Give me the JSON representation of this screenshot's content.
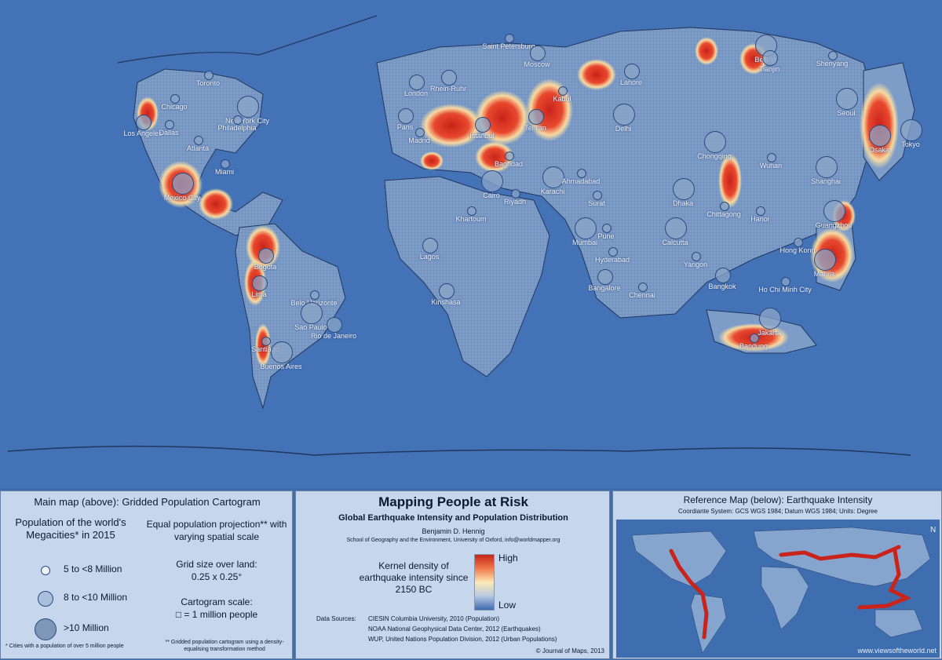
{
  "map": {
    "colors": {
      "ocean": "#4472b6",
      "land": "#7d9cc8",
      "hazard_high": "#d8261c",
      "hazard_mid": "#fbe6a8"
    },
    "cities": [
      {
        "name": "Toronto",
        "size": "small"
      },
      {
        "name": "Chicago",
        "size": "small"
      },
      {
        "name": "New York City",
        "size": "large"
      },
      {
        "name": "Philadelphia",
        "size": "small"
      },
      {
        "name": "Los Angeles",
        "size": "medium"
      },
      {
        "name": "Dallas",
        "size": "small"
      },
      {
        "name": "Atlanta",
        "size": "small"
      },
      {
        "name": "Miami",
        "size": "small"
      },
      {
        "name": "Mexico City",
        "size": "large"
      },
      {
        "name": "Bogota",
        "size": "medium"
      },
      {
        "name": "Lima",
        "size": "medium"
      },
      {
        "name": "Belo Horizonte",
        "size": "small"
      },
      {
        "name": "Rio de Janeiro",
        "size": "medium"
      },
      {
        "name": "Sao Paulo",
        "size": "large"
      },
      {
        "name": "Santiago",
        "size": "small"
      },
      {
        "name": "Buenos Aires",
        "size": "large"
      },
      {
        "name": "Saint Petersburg",
        "size": "small"
      },
      {
        "name": "Moscow",
        "size": "medium"
      },
      {
        "name": "Rhein-Ruhr",
        "size": "medium"
      },
      {
        "name": "London",
        "size": "medium"
      },
      {
        "name": "Paris",
        "size": "medium"
      },
      {
        "name": "Madrid",
        "size": "small"
      },
      {
        "name": "Istanbul",
        "size": "medium"
      },
      {
        "name": "Tehran",
        "size": "medium"
      },
      {
        "name": "Kabul",
        "size": "small"
      },
      {
        "name": "Baghdad",
        "size": "small"
      },
      {
        "name": "Cairo",
        "size": "large"
      },
      {
        "name": "Riyadh",
        "size": "small"
      },
      {
        "name": "Khartoum",
        "size": "small"
      },
      {
        "name": "Lagos",
        "size": "medium"
      },
      {
        "name": "Kinshasa",
        "size": "medium"
      },
      {
        "name": "Lahore",
        "size": "medium"
      },
      {
        "name": "Delhi",
        "size": "large"
      },
      {
        "name": "Karachi",
        "size": "large"
      },
      {
        "name": "Ahmadabad",
        "size": "small"
      },
      {
        "name": "Surat",
        "size": "small"
      },
      {
        "name": "Mumbai",
        "size": "large"
      },
      {
        "name": "Pune",
        "size": "small"
      },
      {
        "name": "Hyderabad",
        "size": "small"
      },
      {
        "name": "Bangalore",
        "size": "medium"
      },
      {
        "name": "Chennai",
        "size": "small"
      },
      {
        "name": "Calcutta",
        "size": "large"
      },
      {
        "name": "Dhaka",
        "size": "large"
      },
      {
        "name": "Chittagong",
        "size": "small"
      },
      {
        "name": "Yangon",
        "size": "small"
      },
      {
        "name": "Bangkok",
        "size": "medium"
      },
      {
        "name": "Hanoi",
        "size": "small"
      },
      {
        "name": "Ho Chi Minh City",
        "size": "small"
      },
      {
        "name": "Beijing",
        "size": "large"
      },
      {
        "name": "Tianjin",
        "size": "medium"
      },
      {
        "name": "Shenyang",
        "size": "small"
      },
      {
        "name": "Chongqing",
        "size": "large"
      },
      {
        "name": "Wuhan",
        "size": "small"
      },
      {
        "name": "Shanghai",
        "size": "large"
      },
      {
        "name": "Guangzhou",
        "size": "large"
      },
      {
        "name": "Hong Kong",
        "size": "small"
      },
      {
        "name": "Manila",
        "size": "large"
      },
      {
        "name": "Jakarta",
        "size": "large"
      },
      {
        "name": "Bandung",
        "size": "small"
      },
      {
        "name": "Seoul",
        "size": "large"
      },
      {
        "name": "Osaka",
        "size": "large"
      },
      {
        "name": "Tokyo",
        "size": "large"
      }
    ]
  },
  "left_panel": {
    "title": "Main map (above): Gridded Population Cartogram",
    "pop_heading": "Population of the world's Megacities* in 2015",
    "legend": [
      {
        "label": "5 to <8 Million",
        "size": "small"
      },
      {
        "label": "8 to <10 Million",
        "size": "medium"
      },
      {
        "label": ">10 Million",
        "size": "large"
      }
    ],
    "projection": "Equal population projection** with varying spatial scale",
    "grid_title": "Grid size over land:",
    "grid_value": "0.25 x 0.25°",
    "scale_title": "Cartogram scale:",
    "scale_value": "□ = 1 million people",
    "footnote_1": "* Cities with a population of over 5 million people",
    "footnote_2": "** Gridded population cartogram using a density-equalising transformation method"
  },
  "center_panel": {
    "title": "Mapping People at Risk",
    "subtitle": "Global Earthquake Intensity and Population Distribution",
    "author": "Benjamin D. Hennig",
    "affiliation": "School of Geography and the Environment, University of Oxford, info@worldmapper.org",
    "kernel_label": "Kernel density of earthquake intensity since 2150 BC",
    "high": "High",
    "low": "Low",
    "sources_label": "Data Sources:",
    "sources": [
      "CIESIN Columbia University, 2010 (Population)",
      "NOAA National Geophysical Data Center, 2012 (Earthquakes)",
      "WUP, United Nations Population Division, 2012 (Urban Populations)"
    ],
    "copyright": "© Journal of Maps, 2013"
  },
  "right_panel": {
    "title": "Reference Map (below): Earthquake Intensity",
    "coords": "Coordiante System: GCS WGS 1984; Datum WGS 1984; Units: Degree",
    "north": "N",
    "watermark": "www.viewsoftheworld.net"
  }
}
